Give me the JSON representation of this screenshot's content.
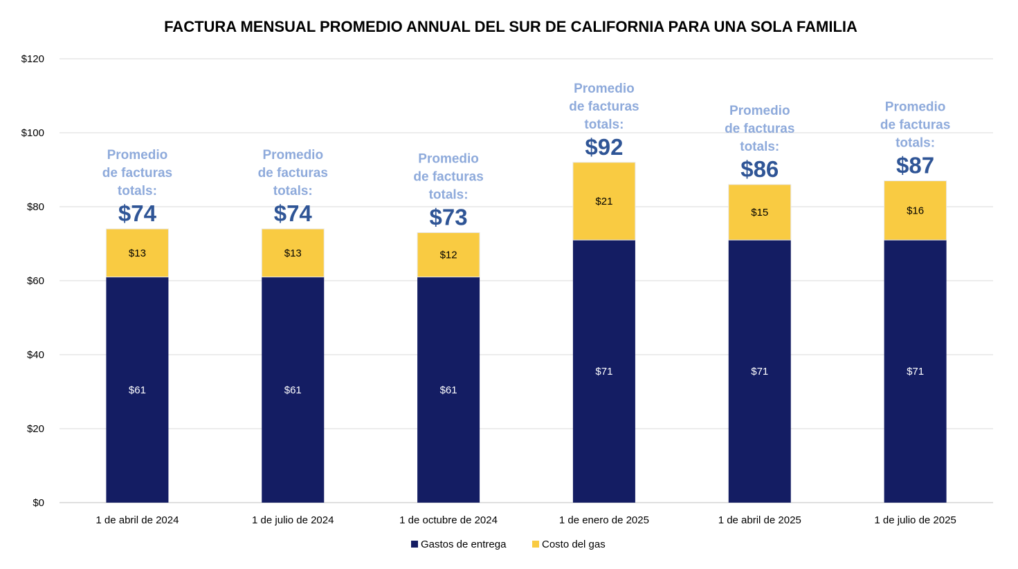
{
  "chart_data": {
    "type": "bar",
    "stacked": true,
    "title": "FACTURA MENSUAL PROMEDIO ANNUAL DEL SUR DE CALIFORNIA PARA UNA SOLA FAMILIA",
    "xlabel": "",
    "ylabel": "",
    "ylim": [
      0,
      120
    ],
    "yticks": [
      0,
      20,
      40,
      60,
      80,
      100,
      120
    ],
    "ytick_labels": [
      "$0",
      "$20",
      "$40",
      "$60",
      "$80",
      "$100",
      "$120"
    ],
    "grid": true,
    "categories": [
      "1 de abril de 2024",
      "1 de julio de 2024",
      "1 de octubre de 2024",
      "1 de enero de 2025",
      "1 de abril de 2025",
      "1 de julio de 2025"
    ],
    "series": [
      {
        "name": "Gastos de entrega",
        "color": "#141d63",
        "label_color": "#ffffff",
        "values": [
          61,
          61,
          61,
          71,
          71,
          71
        ],
        "labels": [
          "$61",
          "$61",
          "$61",
          "$71",
          "$71",
          "$71"
        ]
      },
      {
        "name": "Costo del gas",
        "color": "#f9cb42",
        "label_color": "#000000",
        "values": [
          13,
          13,
          12,
          21,
          15,
          16
        ],
        "labels": [
          "$13",
          "$13",
          "$12",
          "$21",
          "$15",
          "$16"
        ]
      }
    ],
    "annotations": {
      "lines": [
        "Promedio",
        "de facturas",
        "totals:"
      ],
      "line_color": "#8eaadb",
      "totals": [
        "$74",
        "$74",
        "$73",
        "$92",
        "$86",
        "$87"
      ],
      "total_color": "#2f5596"
    },
    "legend": {
      "placement": "bottom-center"
    }
  }
}
